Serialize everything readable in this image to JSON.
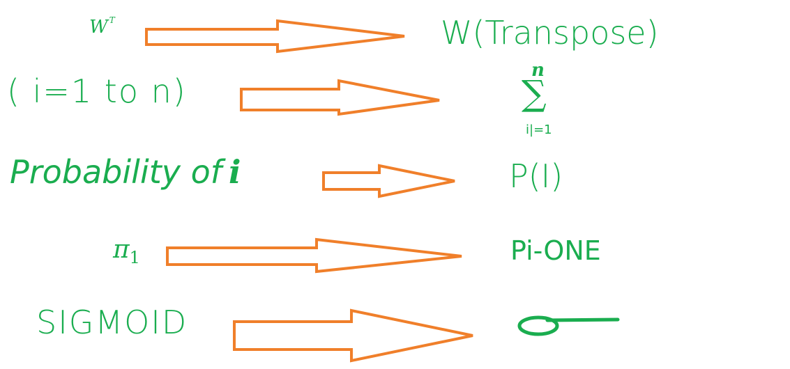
{
  "colors": {
    "text": "#1aad4f",
    "arrow_stroke": "#f07f2a",
    "background": "#ffffff"
  },
  "rows": [
    {
      "label": "W",
      "label_sup": "T",
      "value": "W(Transpose)"
    },
    {
      "label": "( i=1 to n)",
      "value_upper": "n",
      "value_symbol": "∑",
      "value_lower": "i|=1"
    },
    {
      "label": "Probability of",
      "label_var": "i",
      "value": "P(I)"
    },
    {
      "label": "π",
      "label_sub": "1",
      "value": "Pi-ONE"
    },
    {
      "label": "SIGMOID",
      "value_icon": "sigma-symbol-icon"
    }
  ]
}
